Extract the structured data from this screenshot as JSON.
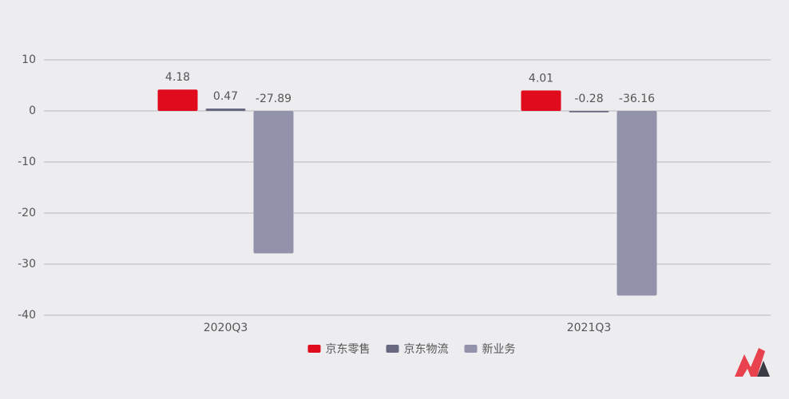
{
  "chart_data": {
    "type": "bar",
    "categories": [
      "2020Q3",
      "2021Q3"
    ],
    "series": [
      {
        "name": "京东零售",
        "color": "#e00b1c",
        "values": [
          4.18,
          4.01
        ]
      },
      {
        "name": "京东物流",
        "color": "#686880",
        "values": [
          0.47,
          -0.28
        ]
      },
      {
        "name": "新业务",
        "color": "#9293aa",
        "values": [
          -27.89,
          -36.16
        ]
      }
    ],
    "ylim": [
      -40,
      10
    ],
    "yticks": [
      -40,
      -30,
      -20,
      -10,
      0,
      10
    ],
    "grid": true
  }
}
